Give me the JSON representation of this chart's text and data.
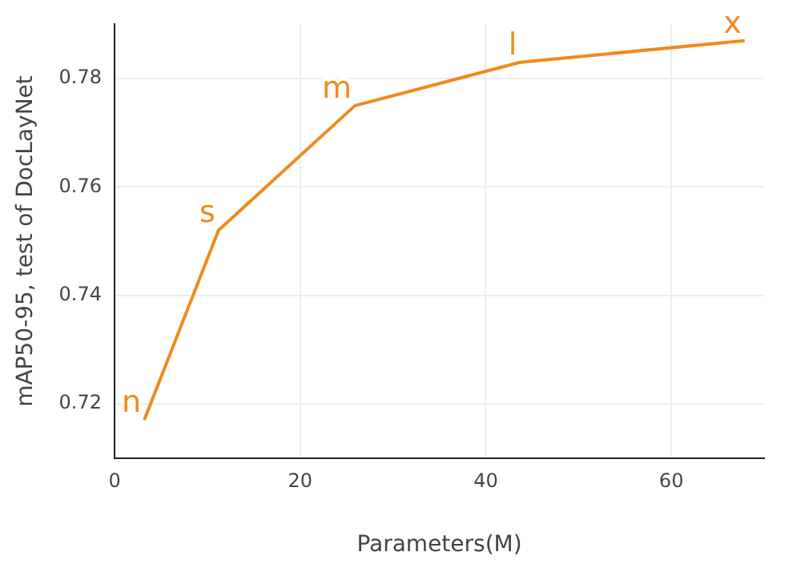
{
  "chart_data": {
    "type": "line",
    "xlabel": "Parameters(M)",
    "ylabel": "mAP50-95, test of DocLayNet",
    "x": [
      3.2,
      11.2,
      25.9,
      43.7,
      67.9
    ],
    "series": [
      {
        "color": "#f08a1c",
        "values": [
          0.717,
          0.752,
          0.775,
          0.783,
          0.787
        ]
      }
    ],
    "annotations": [
      {
        "text": "n",
        "x": 3.2,
        "y": 0.717
      },
      {
        "text": "s",
        "x": 11.2,
        "y": 0.752
      },
      {
        "text": "m",
        "x": 25.9,
        "y": 0.775
      },
      {
        "text": "l",
        "x": 43.7,
        "y": 0.783
      },
      {
        "text": "x",
        "x": 67.9,
        "y": 0.787
      }
    ],
    "xlim": [
      0,
      70
    ],
    "xticks": [
      0,
      20,
      40,
      60
    ],
    "ylim": [
      0.71,
      0.79
    ],
    "yticks": [
      0.72,
      0.74,
      0.76,
      0.78
    ],
    "grid": true,
    "legend": false,
    "marker": "none",
    "line_style": "solid"
  }
}
